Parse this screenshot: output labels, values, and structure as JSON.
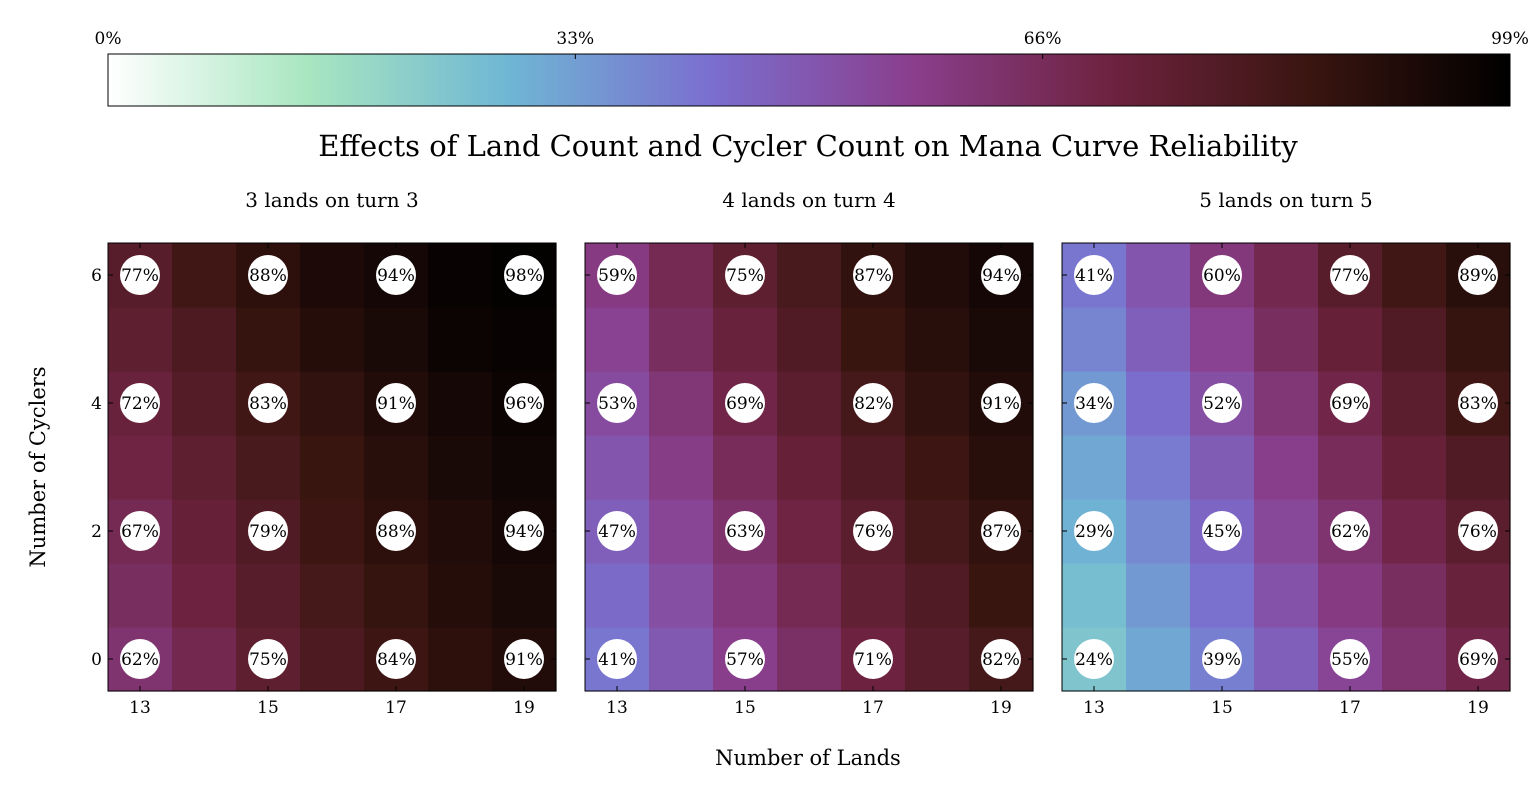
{
  "chart_data": {
    "type": "heatmap",
    "title": "Effects of Land Count and Cycler Count on Mana Curve Reliability",
    "xlabel": "Number of Lands",
    "ylabel": "Number of Cyclers",
    "x": [
      13,
      14,
      15,
      16,
      17,
      18,
      19
    ],
    "y": [
      0,
      1,
      2,
      3,
      4,
      5,
      6
    ],
    "x_tick_labels": [
      "13",
      "15",
      "17",
      "19"
    ],
    "y_tick_labels": [
      "0",
      "2",
      "4",
      "6"
    ],
    "colorbar": {
      "placement": "top",
      "range": [
        0,
        99
      ],
      "tick_labels": [
        "0%",
        "33%",
        "66%",
        "99%"
      ],
      "colormap": [
        "#ffffff",
        "#a8e6c0",
        "#6fb6d4",
        "#7a6fcf",
        "#8a3f8e",
        "#6e2340",
        "#3a1510",
        "#000000"
      ]
    },
    "panels": [
      {
        "name": "3 lands on turn 3",
        "values": [
          [
            62,
            68,
            75,
            80,
            84,
            88,
            91
          ],
          [
            65,
            71,
            77,
            82,
            86,
            90,
            93
          ],
          [
            67,
            73,
            79,
            84,
            88,
            91,
            94
          ],
          [
            70,
            75,
            81,
            85,
            89,
            93,
            95
          ],
          [
            72,
            78,
            83,
            87,
            91,
            94,
            96
          ],
          [
            75,
            80,
            86,
            90,
            93,
            96,
            97
          ],
          [
            77,
            83,
            88,
            92,
            94,
            97,
            98
          ]
        ],
        "annotated": [
          {
            "x": 13,
            "y": 0,
            "label": "62%"
          },
          {
            "x": 15,
            "y": 0,
            "label": "75%"
          },
          {
            "x": 17,
            "y": 0,
            "label": "84%"
          },
          {
            "x": 19,
            "y": 0,
            "label": "91%"
          },
          {
            "x": 13,
            "y": 2,
            "label": "67%"
          },
          {
            "x": 15,
            "y": 2,
            "label": "79%"
          },
          {
            "x": 17,
            "y": 2,
            "label": "88%"
          },
          {
            "x": 19,
            "y": 2,
            "label": "94%"
          },
          {
            "x": 13,
            "y": 4,
            "label": "72%"
          },
          {
            "x": 15,
            "y": 4,
            "label": "83%"
          },
          {
            "x": 17,
            "y": 4,
            "label": "91%"
          },
          {
            "x": 19,
            "y": 4,
            "label": "96%"
          },
          {
            "x": 13,
            "y": 6,
            "label": "77%"
          },
          {
            "x": 15,
            "y": 6,
            "label": "88%"
          },
          {
            "x": 17,
            "y": 6,
            "label": "94%"
          },
          {
            "x": 19,
            "y": 6,
            "label": "98%"
          }
        ]
      },
      {
        "name": "4 lands on turn 4",
        "values": [
          [
            41,
            49,
            57,
            64,
            71,
            77,
            82
          ],
          [
            44,
            52,
            60,
            67,
            74,
            79,
            85
          ],
          [
            47,
            55,
            63,
            70,
            76,
            82,
            87
          ],
          [
            50,
            58,
            66,
            73,
            79,
            84,
            89
          ],
          [
            53,
            61,
            69,
            76,
            82,
            87,
            91
          ],
          [
            56,
            65,
            72,
            79,
            85,
            89,
            93
          ],
          [
            59,
            67,
            75,
            81,
            87,
            91,
            94
          ]
        ],
        "annotated": [
          {
            "x": 13,
            "y": 0,
            "label": "41%"
          },
          {
            "x": 15,
            "y": 0,
            "label": "57%"
          },
          {
            "x": 17,
            "y": 0,
            "label": "71%"
          },
          {
            "x": 19,
            "y": 0,
            "label": "82%"
          },
          {
            "x": 13,
            "y": 2,
            "label": "47%"
          },
          {
            "x": 15,
            "y": 2,
            "label": "63%"
          },
          {
            "x": 17,
            "y": 2,
            "label": "76%"
          },
          {
            "x": 19,
            "y": 2,
            "label": "87%"
          },
          {
            "x": 13,
            "y": 4,
            "label": "53%"
          },
          {
            "x": 15,
            "y": 4,
            "label": "69%"
          },
          {
            "x": 17,
            "y": 4,
            "label": "82%"
          },
          {
            "x": 19,
            "y": 4,
            "label": "91%"
          },
          {
            "x": 13,
            "y": 6,
            "label": "59%"
          },
          {
            "x": 15,
            "y": 6,
            "label": "75%"
          },
          {
            "x": 17,
            "y": 6,
            "label": "87%"
          },
          {
            "x": 19,
            "y": 6,
            "label": "94%"
          }
        ]
      },
      {
        "name": "5 lands on turn 5",
        "values": [
          [
            24,
            31,
            39,
            47,
            55,
            62,
            69
          ],
          [
            26,
            34,
            42,
            51,
            59,
            65,
            72
          ],
          [
            29,
            37,
            45,
            54,
            62,
            69,
            76
          ],
          [
            31,
            40,
            48,
            57,
            66,
            73,
            79
          ],
          [
            34,
            43,
            52,
            61,
            69,
            76,
            83
          ],
          [
            38,
            47,
            56,
            65,
            73,
            79,
            86
          ],
          [
            41,
            50,
            60,
            68,
            77,
            83,
            89
          ]
        ],
        "annotated": [
          {
            "x": 13,
            "y": 0,
            "label": "24%"
          },
          {
            "x": 15,
            "y": 0,
            "label": "39%"
          },
          {
            "x": 17,
            "y": 0,
            "label": "55%"
          },
          {
            "x": 19,
            "y": 0,
            "label": "69%"
          },
          {
            "x": 13,
            "y": 2,
            "label": "29%"
          },
          {
            "x": 15,
            "y": 2,
            "label": "45%"
          },
          {
            "x": 17,
            "y": 2,
            "label": "62%"
          },
          {
            "x": 19,
            "y": 2,
            "label": "76%"
          },
          {
            "x": 13,
            "y": 4,
            "label": "34%"
          },
          {
            "x": 15,
            "y": 4,
            "label": "52%"
          },
          {
            "x": 17,
            "y": 4,
            "label": "69%"
          },
          {
            "x": 19,
            "y": 4,
            "label": "83%"
          },
          {
            "x": 13,
            "y": 6,
            "label": "41%"
          },
          {
            "x": 15,
            "y": 6,
            "label": "60%"
          },
          {
            "x": 17,
            "y": 6,
            "label": "77%"
          },
          {
            "x": 19,
            "y": 6,
            "label": "89%"
          }
        ]
      }
    ]
  }
}
